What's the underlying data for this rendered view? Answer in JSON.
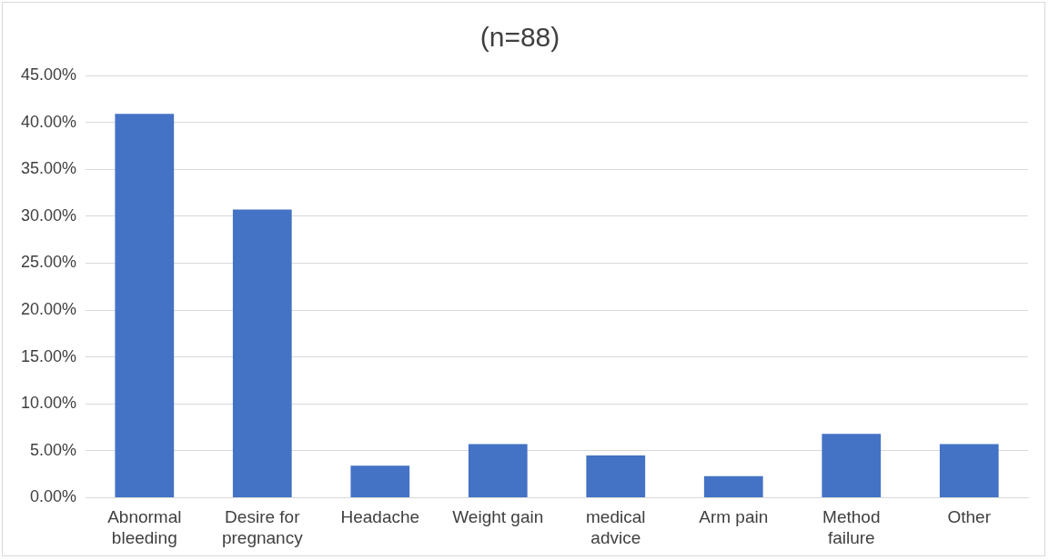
{
  "chart_data": {
    "type": "bar",
    "title": "(n=88)",
    "categories": [
      "Abnormal bleeding",
      "Desire for pregnancy",
      "Headache",
      "Weight gain",
      "medical advice",
      "Arm pain",
      "Method failure",
      "Other"
    ],
    "values": [
      40.9,
      30.7,
      3.4,
      5.7,
      4.5,
      2.3,
      6.8,
      5.7
    ],
    "color": "#4472c4",
    "ylim": [
      0,
      45
    ],
    "yticks": [
      {
        "value": 0,
        "label": "0.00%"
      },
      {
        "value": 5,
        "label": "5.00%"
      },
      {
        "value": 10,
        "label": "10.00%"
      },
      {
        "value": 15,
        "label": "15.00%"
      },
      {
        "value": 20,
        "label": "20.00%"
      },
      {
        "value": 25,
        "label": "25.00%"
      },
      {
        "value": 30,
        "label": "30.00%"
      },
      {
        "value": 35,
        "label": "35.00%"
      },
      {
        "value": 40,
        "label": "40.00%"
      },
      {
        "value": 45,
        "label": "45.00%"
      }
    ],
    "grid": "y"
  }
}
